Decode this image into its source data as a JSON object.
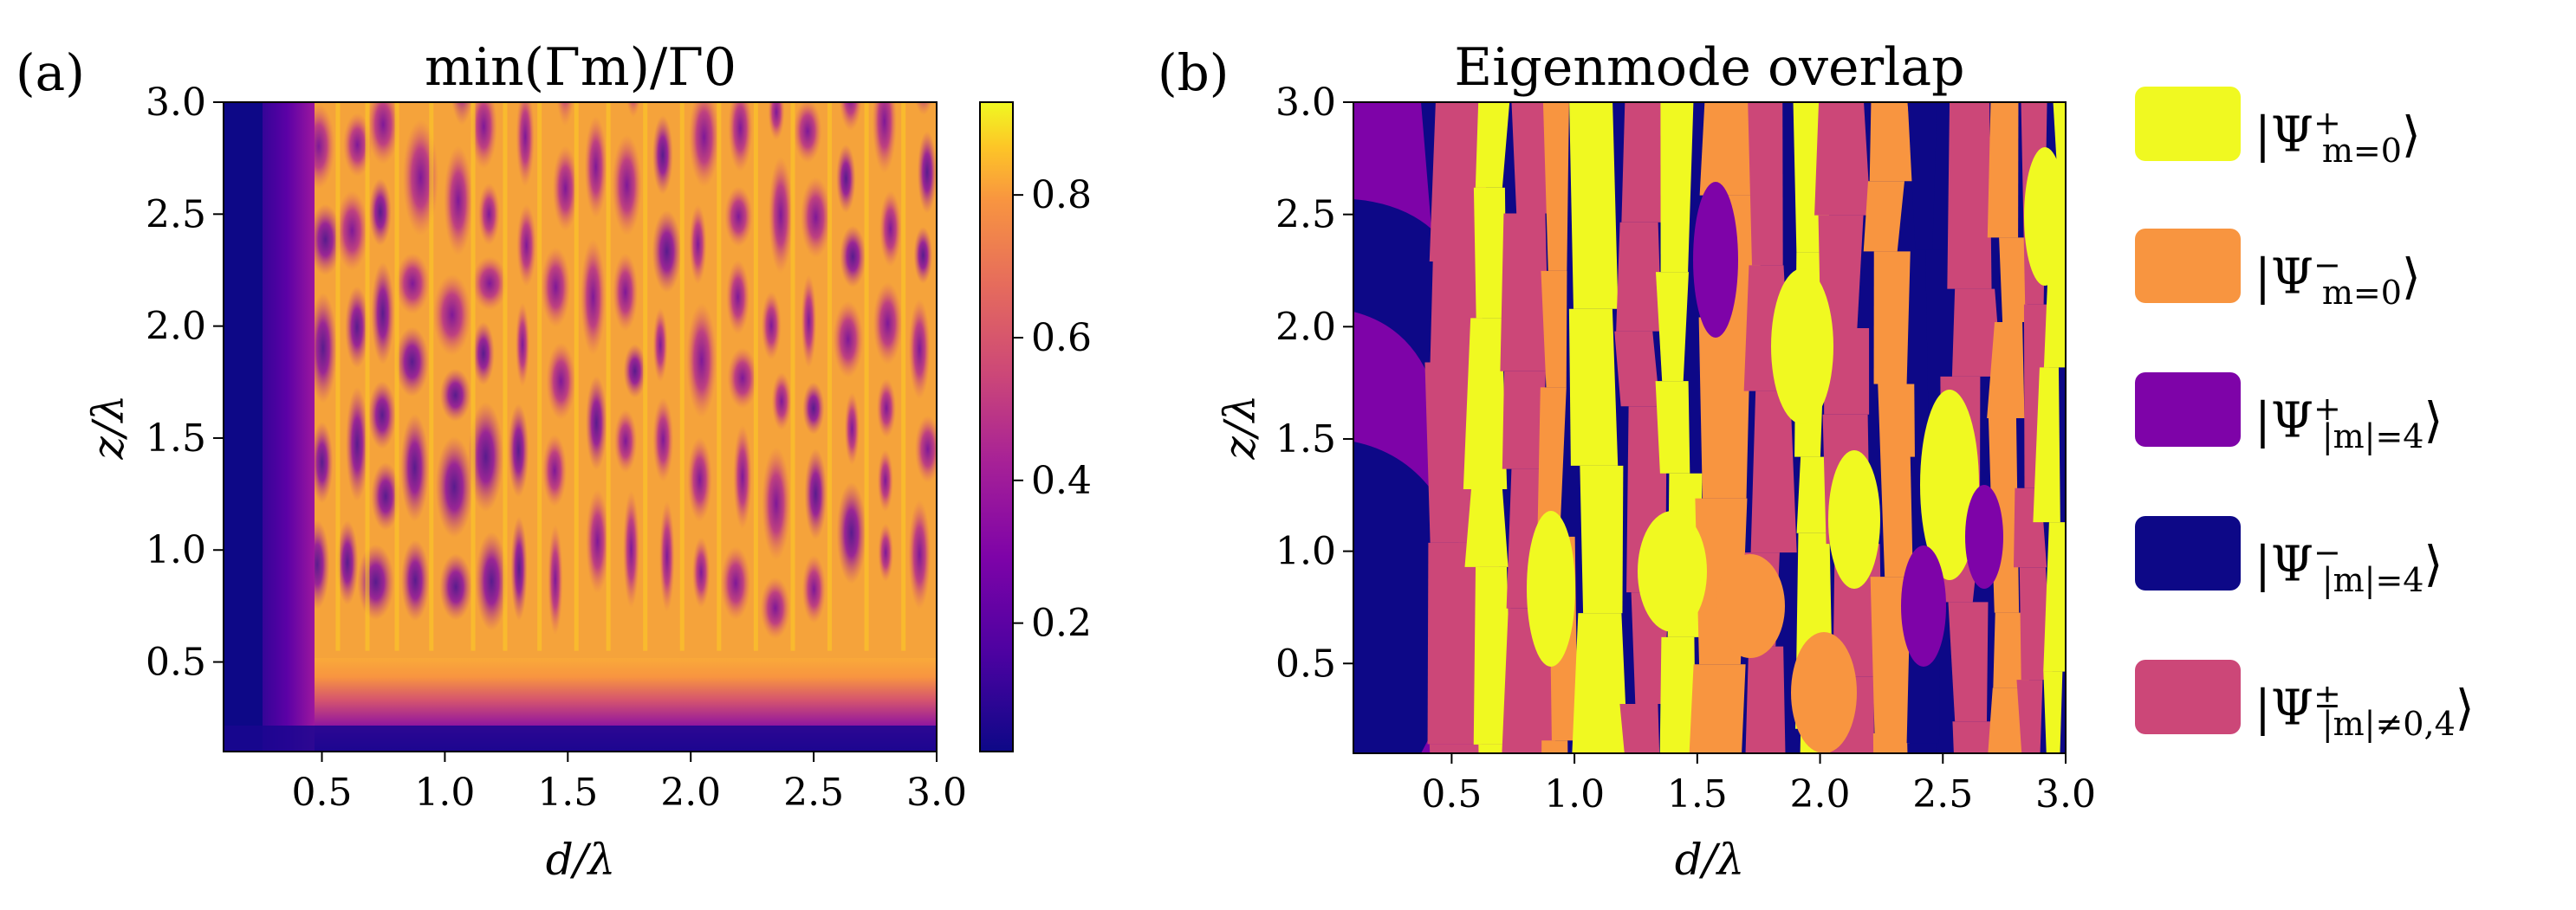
{
  "chart_data": [
    {
      "type": "heatmap",
      "panel": "(a)",
      "title": "min(Γm)/Γ0",
      "xlabel": "d/λ",
      "ylabel": "z/λ",
      "xlim": [
        0.1,
        3.0
      ],
      "ylim": [
        0.1,
        3.0
      ],
      "xticks": [
        "0.5",
        "1.0",
        "1.5",
        "2.0",
        "2.5",
        "3.0"
      ],
      "yticks": [
        "0.5",
        "1.0",
        "1.5",
        "2.0",
        "2.5",
        "3.0"
      ],
      "colorbar": {
        "colormap": "plasma",
        "range": [
          0.02,
          0.93
        ],
        "ticks": [
          "0.2",
          "0.4",
          "0.6",
          "0.8"
        ],
        "tick_values": [
          0.2,
          0.4,
          0.6,
          0.8
        ]
      },
      "description_values": {
        "low_region_d_below": 0.35,
        "low_region_z_below": 0.45,
        "typical_high_value": 0.8
      }
    },
    {
      "type": "heatmap",
      "panel": "(b)",
      "title": "Eigenmode overlap",
      "xlabel": "d/λ",
      "ylabel": "z/λ",
      "xlim": [
        0.1,
        3.0
      ],
      "ylim": [
        0.1,
        3.0
      ],
      "xticks": [
        "0.5",
        "1.0",
        "1.5",
        "2.0",
        "2.5",
        "3.0"
      ],
      "yticks": [
        "0.5",
        "1.0",
        "1.5",
        "2.0",
        "2.5",
        "3.0"
      ],
      "categories": [
        "Ψ+ m=0",
        "Ψ− m=0",
        "Ψ+ |m|=4",
        "Ψ− |m|=4",
        "Ψ± |m|≠0,4"
      ]
    }
  ],
  "legend": [
    {
      "sym": "Ψ",
      "sup": "+",
      "sub": "m=0",
      "color": "#f0f921"
    },
    {
      "sym": "Ψ",
      "sup": "−",
      "sub": "m=0",
      "color": "#f89540"
    },
    {
      "sym": "Ψ",
      "sup": "+",
      "sub": "|m|=4",
      "color": "#7e03a8"
    },
    {
      "sym": "Ψ",
      "sup": "−",
      "sub": "|m|=4",
      "color": "#0d0887"
    },
    {
      "sym": "Ψ",
      "sup": "±",
      "sub": "|m|≠0,4",
      "color": "#cc4778"
    }
  ],
  "colors": {
    "yellow": "#f0f921",
    "orange": "#f89540",
    "purple": "#7e03a8",
    "navy": "#0d0887",
    "pink": "#cc4778"
  }
}
